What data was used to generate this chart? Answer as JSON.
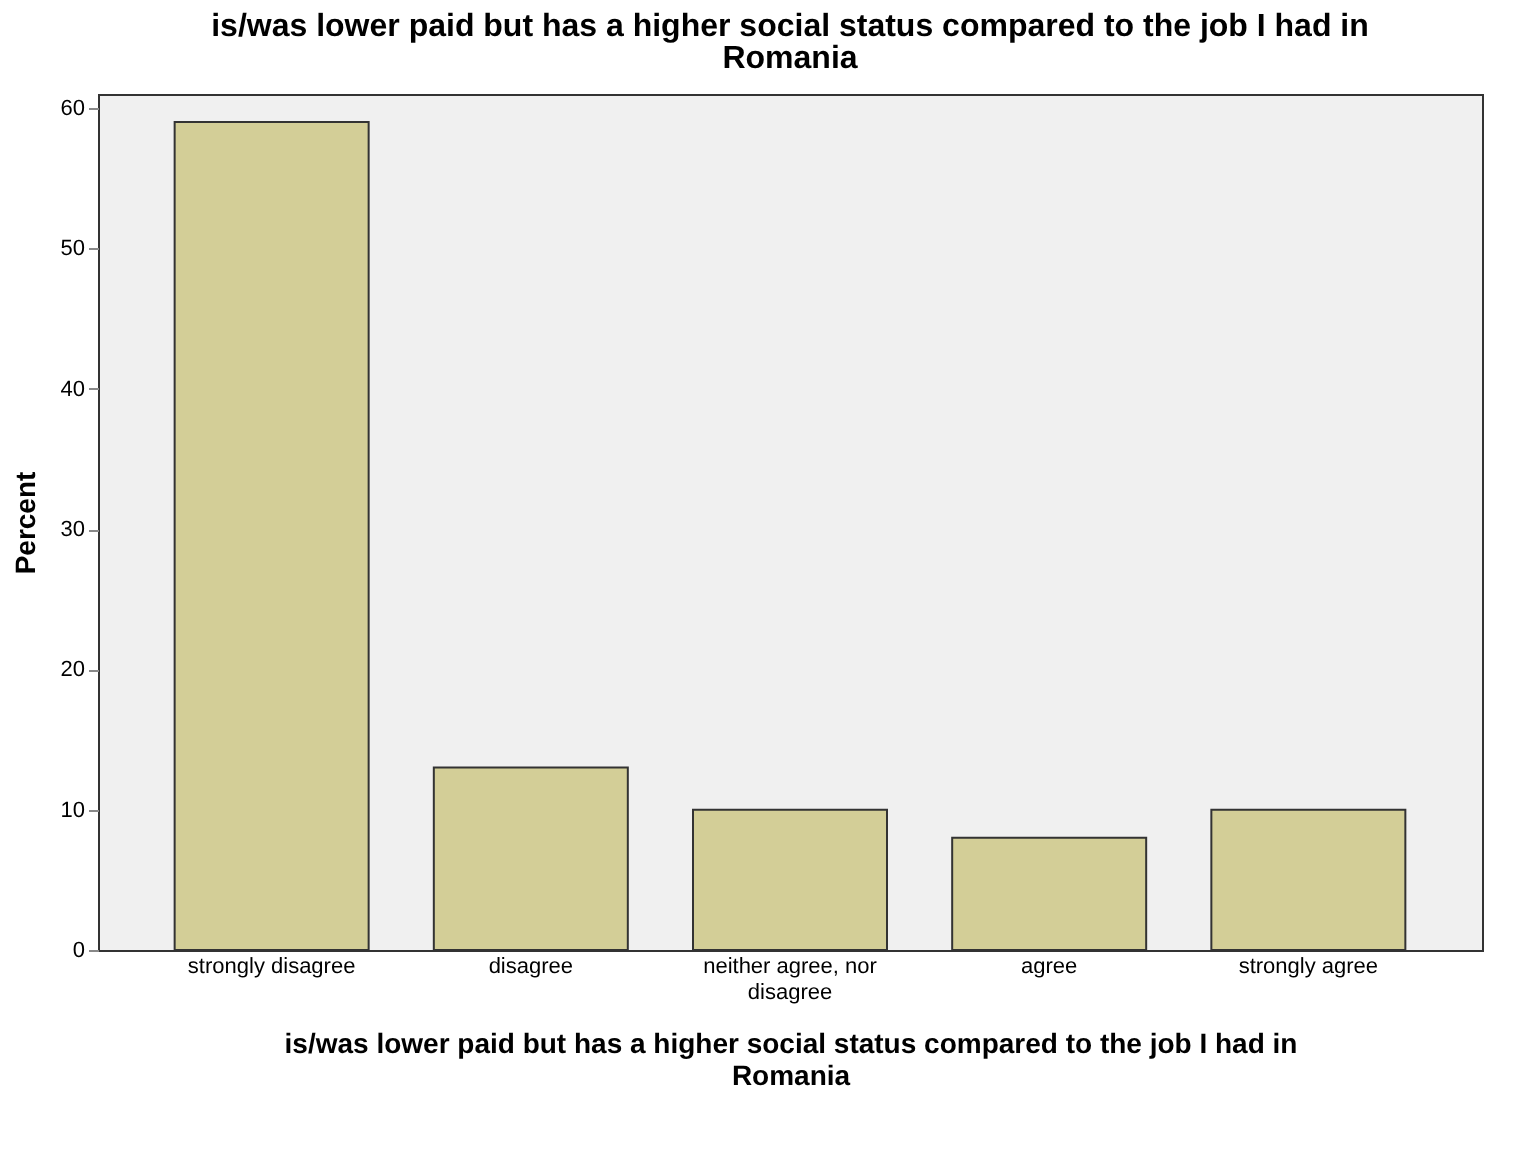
{
  "chart_data": {
    "type": "bar",
    "title": "is/was lower paid but has a higher social status compared to the job I had in Romania",
    "xlabel": "is/was lower paid but has a higher social status compared to the job I had in Romania",
    "ylabel": "Percent",
    "categories": [
      "strongly disagree",
      "disagree",
      "neither agree, nor disagree",
      "agree",
      "strongly agree"
    ],
    "values": [
      59,
      13,
      10,
      8,
      10
    ],
    "color": "#d3ce97",
    "ylim": [
      0,
      61
    ],
    "yticks": [
      0,
      10,
      20,
      30,
      40,
      50,
      60
    ],
    "grid": false
  }
}
